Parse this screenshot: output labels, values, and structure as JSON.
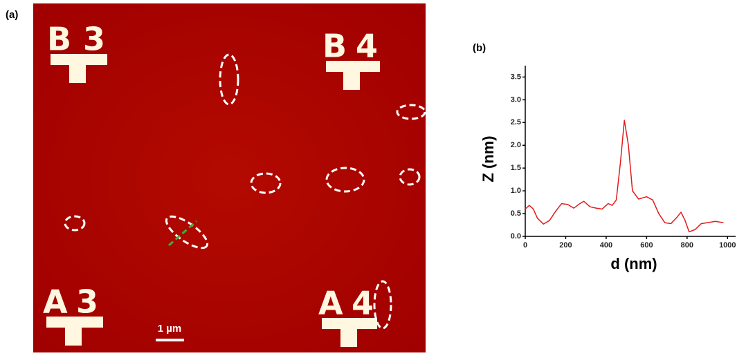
{
  "panels": {
    "a": {
      "label": "(a)",
      "scale_bar": "1 µm",
      "markers": [
        {
          "letter": "B",
          "number": "3"
        },
        {
          "letter": "B",
          "number": "4"
        },
        {
          "letter": "A",
          "number": "3"
        },
        {
          "letter": "A",
          "number": "4"
        }
      ]
    },
    "b": {
      "label": "(b)"
    }
  },
  "chart_data": {
    "type": "line",
    "xlabel": "d (nm)",
    "ylabel": "Z (nm)",
    "color": "#e31a1c",
    "x": [
      0,
      20,
      40,
      60,
      90,
      120,
      150,
      180,
      210,
      240,
      270,
      290,
      320,
      350,
      380,
      410,
      430,
      450,
      470,
      490,
      510,
      530,
      560,
      600,
      630,
      660,
      690,
      720,
      750,
      770,
      790,
      810,
      840,
      870,
      900,
      940,
      980
    ],
    "values": [
      0.6,
      0.68,
      0.6,
      0.4,
      0.27,
      0.35,
      0.55,
      0.72,
      0.7,
      0.62,
      0.72,
      0.77,
      0.65,
      0.62,
      0.6,
      0.72,
      0.68,
      0.8,
      1.6,
      2.55,
      2.0,
      1.0,
      0.82,
      0.87,
      0.8,
      0.5,
      0.3,
      0.28,
      0.42,
      0.53,
      0.35,
      0.1,
      0.15,
      0.28,
      0.3,
      0.33,
      0.3
    ],
    "xlim": [
      0,
      1040
    ],
    "ylim": [
      0,
      3.75
    ],
    "xticks": [
      0,
      200,
      400,
      600,
      800,
      1000
    ],
    "yticks": [
      {
        "value": 0,
        "label": "0.0"
      },
      0.5,
      {
        "value": 1,
        "label": "1.0"
      },
      1.5,
      {
        "value": 2,
        "label": "2.0"
      },
      2.5,
      {
        "value": 3,
        "label": "3.0"
      },
      3.5
    ]
  }
}
